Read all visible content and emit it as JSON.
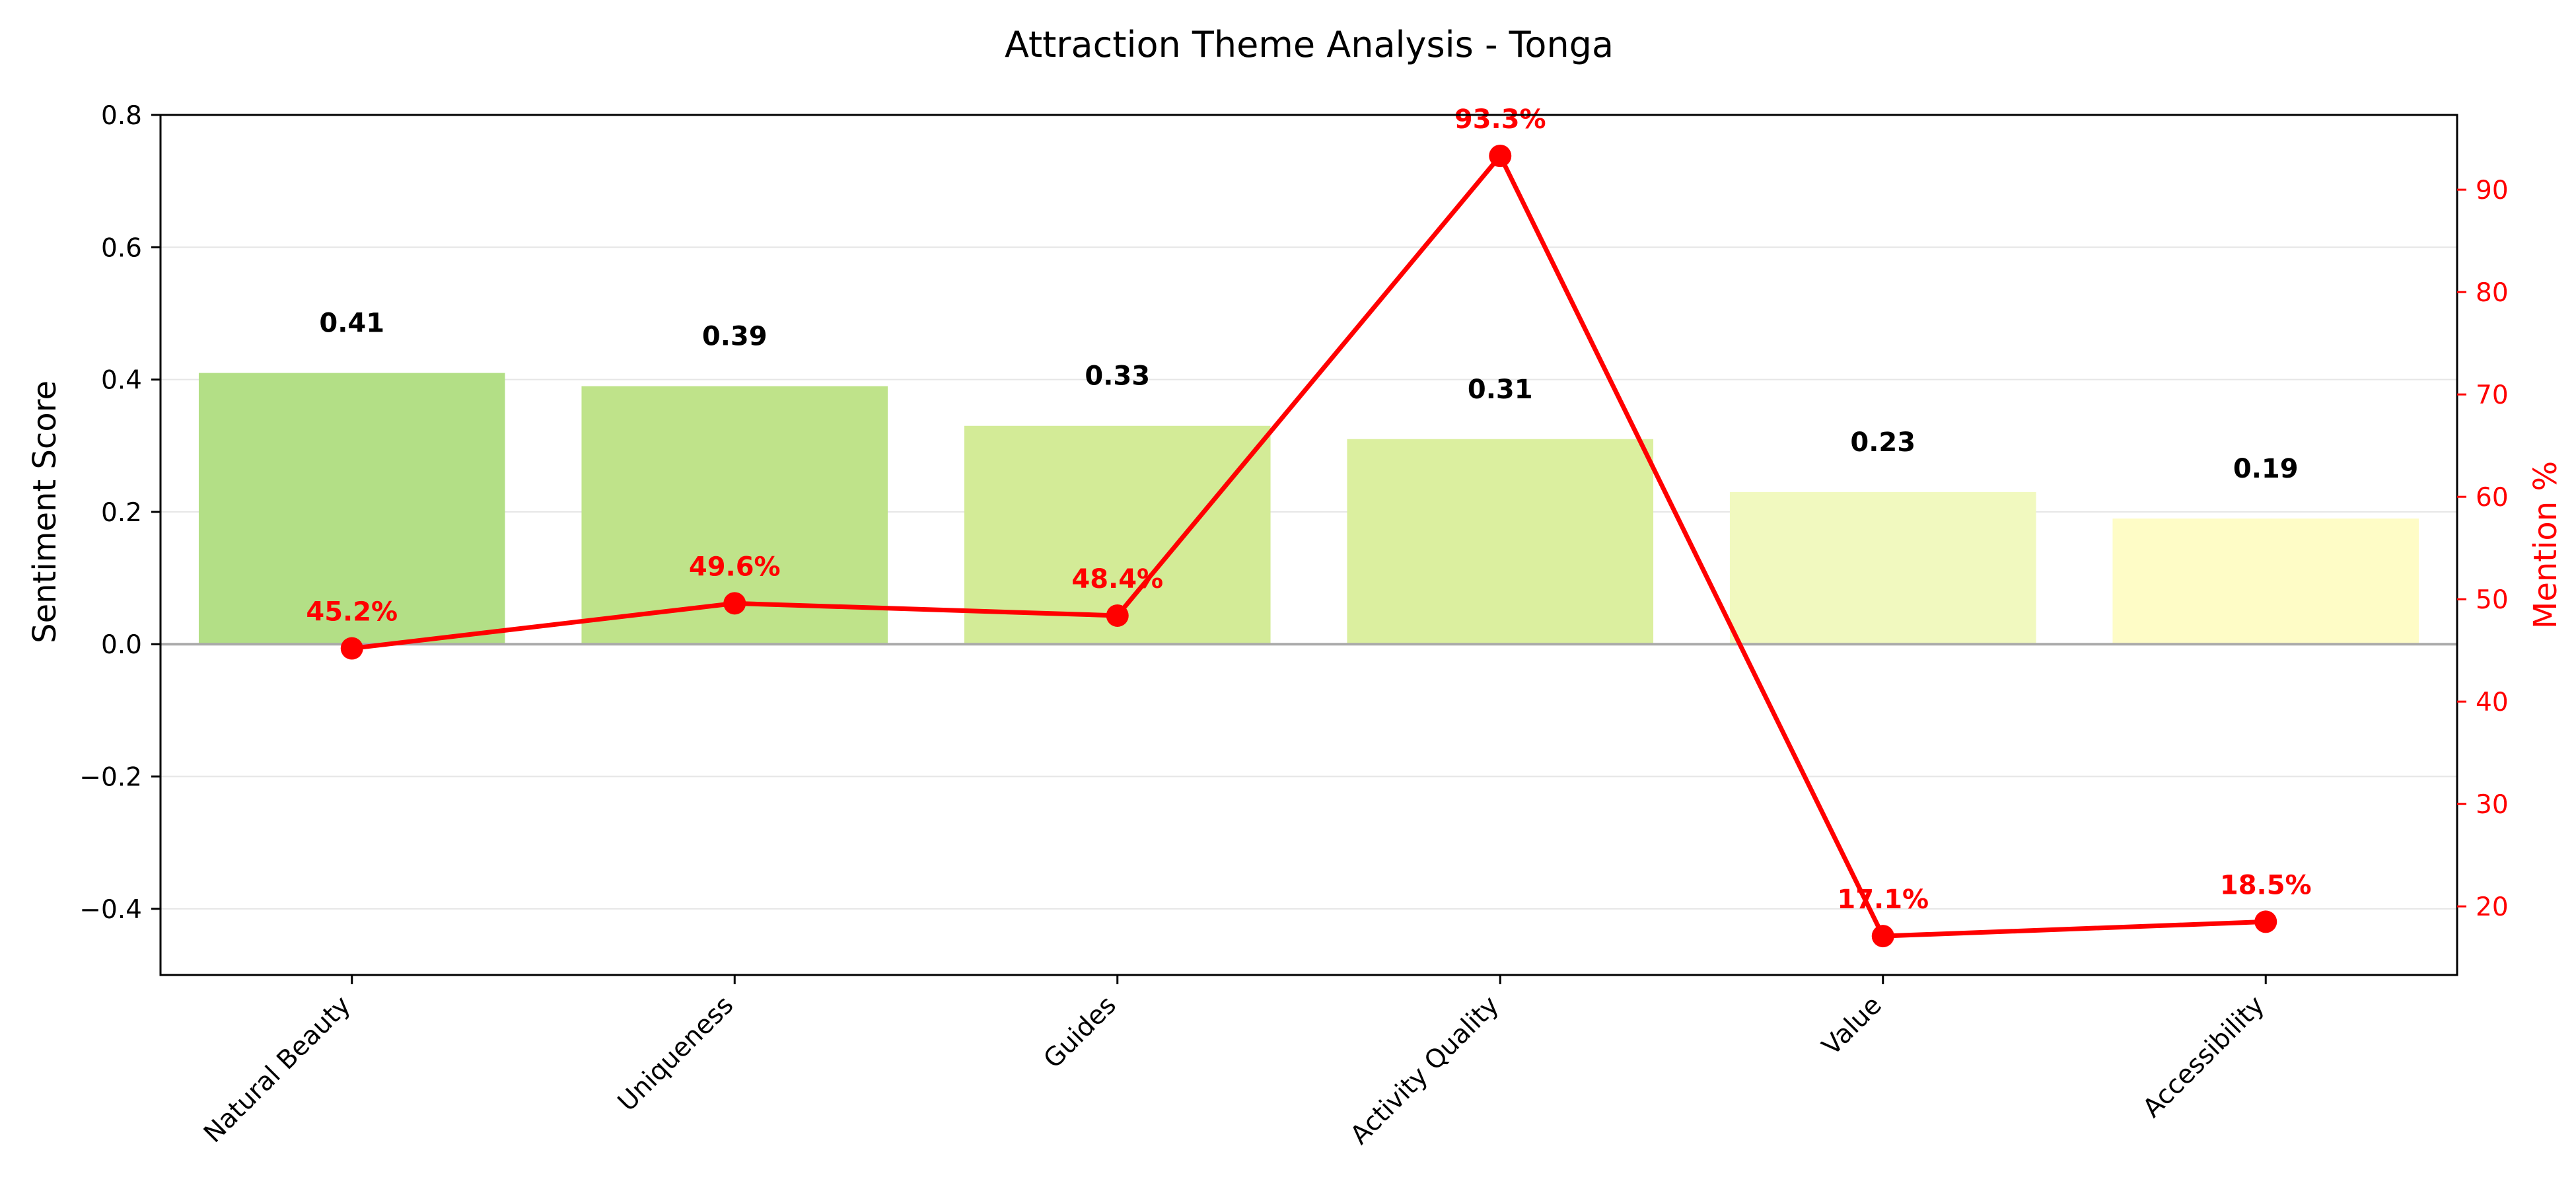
{
  "chart_data": {
    "type": "bar",
    "title": "Attraction Theme Analysis - Tonga",
    "categories": [
      "Natural Beauty",
      "Uniqueness",
      "Guides",
      "Activity Quality",
      "Value",
      "Accessibility"
    ],
    "series": [
      {
        "values": [
          0.41,
          0.39,
          0.33,
          0.31,
          0.23,
          0.19
        ],
        "value_labels": [
          "0.41",
          "0.39",
          "0.33",
          "0.31",
          "0.23",
          "0.19"
        ],
        "colors": [
          "#b3df86",
          "#bfe38a",
          "#d3eb97",
          "#dbef9f",
          "#f1f9bf",
          "#fefcc6"
        ],
        "axis": "left",
        "chart_type": "bar"
      },
      {
        "values": [
          45.2,
          49.6,
          48.4,
          93.3,
          17.1,
          18.5
        ],
        "value_labels": [
          "45.2%",
          "49.6%",
          "48.4%",
          "93.3%",
          "17.1%",
          "18.5%"
        ],
        "color": "#ff0000",
        "axis": "right",
        "chart_type": "line"
      }
    ],
    "ylabel": "Sentiment Score",
    "y2label": "Mention %",
    "ylim": [
      -0.5,
      0.8
    ],
    "y2lim": [
      13.3,
      97.3
    ],
    "yticks": [
      -0.4,
      -0.2,
      0.0,
      0.2,
      0.4,
      0.6,
      0.8
    ],
    "ytick_labels": [
      "−0.4",
      "−0.2",
      "0.0",
      "0.2",
      "0.4",
      "0.6",
      "0.8"
    ],
    "y2ticks": [
      20,
      30,
      40,
      50,
      60,
      70,
      80,
      90
    ],
    "y2tick_labels": [
      "20",
      "30",
      "40",
      "50",
      "60",
      "70",
      "80",
      "90"
    ],
    "grid": "horizontal",
    "zero_line": true
  }
}
